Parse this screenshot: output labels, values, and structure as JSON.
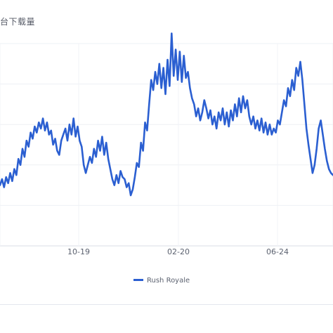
{
  "title": "台下载量",
  "chart_data": {
    "type": "line",
    "title": "台下载量",
    "xlabel": "",
    "ylabel": "",
    "x_ticks": [
      "10-19",
      "02-20",
      "06-24"
    ],
    "ylim": [
      0,
      100
    ],
    "grid": true,
    "legend": "bottom-center",
    "series": [
      {
        "name": "Rush Royale",
        "color": "#2b5fd1",
        "values": [
          30,
          33,
          29,
          34,
          31,
          36,
          32,
          38,
          35,
          43,
          40,
          48,
          44,
          52,
          49,
          56,
          53,
          59,
          56,
          61,
          58,
          63,
          57,
          61,
          55,
          57,
          50,
          53,
          47,
          45,
          52,
          55,
          58,
          52,
          60,
          55,
          63,
          54,
          59,
          52,
          49,
          40,
          36,
          40,
          44,
          41,
          48,
          44,
          52,
          47,
          54,
          45,
          51,
          43,
          38,
          33,
          30,
          35,
          31,
          37,
          34,
          33,
          29,
          31,
          25,
          28,
          34,
          41,
          39,
          51,
          47,
          61,
          57,
          70,
          82,
          77,
          86,
          80,
          90,
          78,
          88,
          75,
          92,
          79,
          105,
          84,
          97,
          82,
          96,
          81,
          94,
          83,
          86,
          78,
          73,
          70,
          64,
          68,
          62,
          66,
          72,
          68,
          63,
          67,
          60,
          64,
          58,
          66,
          62,
          68,
          60,
          66,
          59,
          67,
          62,
          70,
          64,
          73,
          66,
          74,
          68,
          72,
          64,
          60,
          64,
          58,
          62,
          57,
          63,
          56,
          61,
          55,
          60,
          55,
          58,
          56,
          62,
          60,
          66,
          72,
          69,
          78,
          74,
          82,
          77,
          88,
          84,
          91,
          82,
          70,
          58,
          50,
          43,
          36,
          40,
          48,
          58,
          62,
          55,
          48,
          42,
          38,
          36,
          35
        ]
      }
    ]
  }
}
